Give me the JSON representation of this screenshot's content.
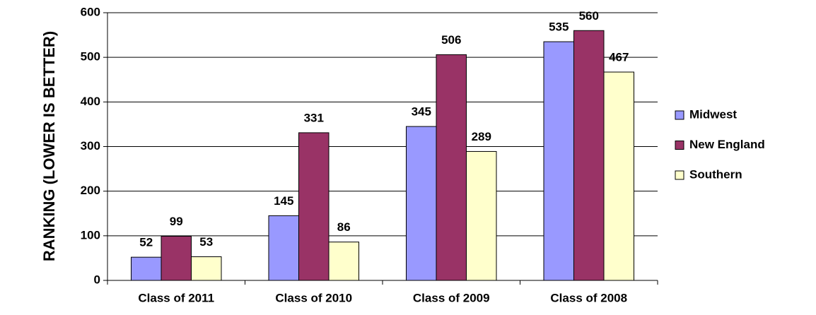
{
  "chart_data": {
    "type": "bar",
    "y_label": "RANKING (LOWER IS BETTER)",
    "categories": [
      "Class of 2011",
      "Class of 2010",
      "Class of 2009",
      "Class of 2008"
    ],
    "series": [
      {
        "name": "Midwest",
        "color": "#9999ff",
        "values": [
          52,
          145,
          345,
          535
        ]
      },
      {
        "name": "New England",
        "color": "#993366",
        "values": [
          99,
          331,
          506,
          560
        ]
      },
      {
        "name": "Southern",
        "color": "#ffffcc",
        "values": [
          53,
          86,
          289,
          467
        ]
      }
    ],
    "ylim": [
      0,
      600
    ],
    "yticks": [
      0,
      100,
      200,
      300,
      400,
      500,
      600
    ],
    "grid": true,
    "legend": "right"
  }
}
